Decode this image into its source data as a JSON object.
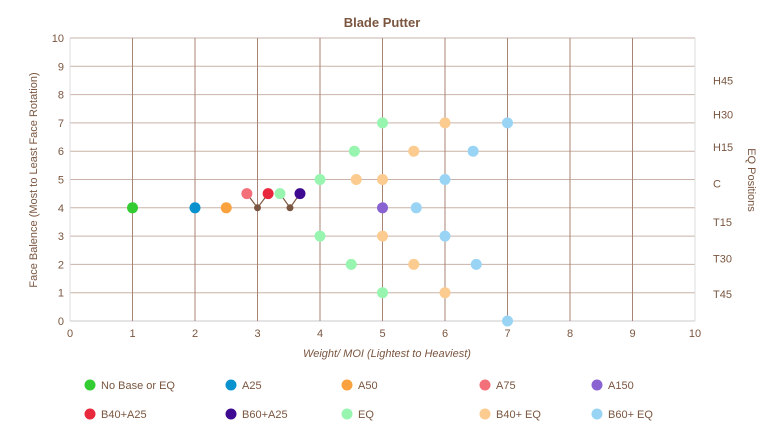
{
  "chart_data": {
    "type": "scatter",
    "title": "Blade Putter",
    "xlabel": "Weight/ MOI (Lightest to Heaviest)",
    "ylabel": "Face Balence (Most  to  Least Face Rotation)",
    "y2label": "EQ  Positions",
    "xlim": [
      0,
      10
    ],
    "ylim": [
      0,
      10
    ],
    "xticks": [
      "0",
      "1",
      "2",
      "3",
      "4",
      "5",
      "6",
      "7",
      "8",
      "9",
      "10"
    ],
    "yticks": [
      "0",
      "1",
      "2",
      "3",
      "4",
      "5",
      "6",
      "7",
      "8",
      "9",
      "10"
    ],
    "y2_ticks": [
      {
        "label": "H45",
        "y": 8.5
      },
      {
        "label": "H30",
        "y": 7.3
      },
      {
        "label": "H15",
        "y": 6.15
      },
      {
        "label": "C",
        "y": 4.85
      },
      {
        "label": "T15",
        "y": 3.5
      },
      {
        "label": "T30",
        "y": 2.2
      },
      {
        "label": "T45",
        "y": 0.95
      }
    ],
    "grid": true,
    "legend_position": "bottom",
    "series": [
      {
        "name": "No Base or EQ",
        "color": "#33cc33",
        "points": [
          [
            1,
            4
          ]
        ]
      },
      {
        "name": "A25",
        "color": "#0a92cf",
        "points": [
          [
            2,
            4
          ]
        ]
      },
      {
        "name": "A50",
        "color": "#f9a23f",
        "points": [
          [
            2.5,
            4
          ]
        ]
      },
      {
        "name": "A75",
        "color": "#f3707a",
        "points": [
          [
            2.83,
            4.5
          ]
        ]
      },
      {
        "name": "A150",
        "color": "#8a63d2",
        "points": [
          [
            5,
            4
          ]
        ]
      },
      {
        "name": "B40+A25",
        "color": "#e8283c",
        "points": [
          [
            3.17,
            4.5
          ]
        ]
      },
      {
        "name": "B60+A25",
        "color": "#3d0a91",
        "points": [
          [
            3.68,
            4.5
          ]
        ]
      },
      {
        "name": "EQ",
        "color": "#98f5b0",
        "points": [
          [
            3.36,
            4.5
          ],
          [
            5,
            7
          ],
          [
            4.55,
            6
          ],
          [
            4,
            5
          ],
          [
            4,
            3
          ],
          [
            4.5,
            2
          ],
          [
            5,
            1
          ]
        ]
      },
      {
        "name": "B40+ EQ",
        "color": "#fccb8f",
        "points": [
          [
            6,
            7
          ],
          [
            5.5,
            6
          ],
          [
            4.58,
            5
          ],
          [
            5,
            5
          ],
          [
            5,
            3
          ],
          [
            5.5,
            2
          ],
          [
            6,
            1
          ]
        ]
      },
      {
        "name": "B60+ EQ",
        "color": "#9ad4f5",
        "points": [
          [
            7,
            7
          ],
          [
            6.45,
            6
          ],
          [
            6,
            5
          ],
          [
            5.54,
            4
          ],
          [
            6,
            3
          ],
          [
            6.5,
            2
          ],
          [
            7,
            0
          ]
        ]
      }
    ],
    "connectors": [
      {
        "color": "#7a5640",
        "at": [
          3,
          4
        ],
        "to": [
          [
            2.83,
            4.5
          ],
          [
            3.17,
            4.5
          ]
        ]
      },
      {
        "color": "#7a5640",
        "at": [
          3.52,
          4
        ],
        "to": [
          [
            3.36,
            4.5
          ],
          [
            3.68,
            4.5
          ]
        ]
      }
    ]
  }
}
